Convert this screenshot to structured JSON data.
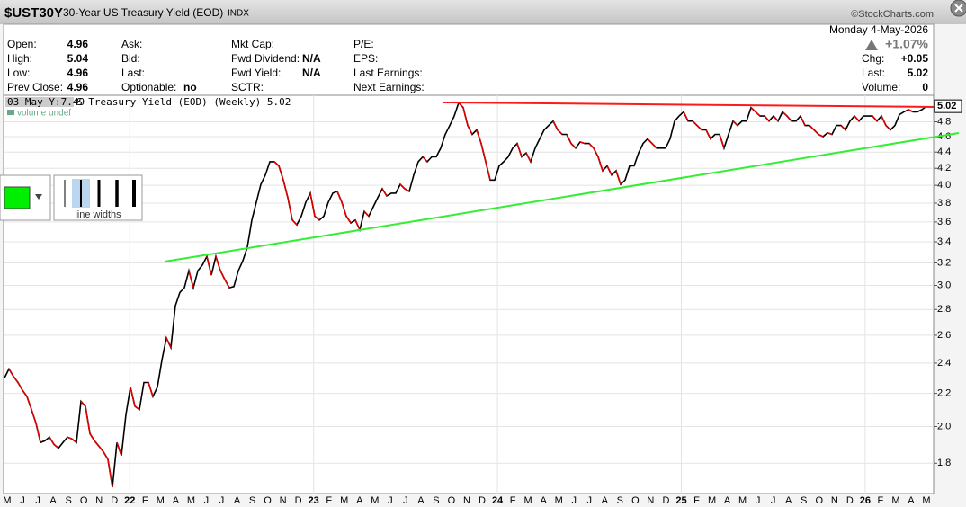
{
  "header": {
    "symbol": "$UST30Y",
    "name": "30-Year US Treasury Yield (EOD)",
    "exchange": "INDX",
    "brand": "©StockCharts.com"
  },
  "quote": {
    "date": "Monday  4-May-2026",
    "change_pct": "+1.07%",
    "columns": [
      [
        {
          "label": "Open:",
          "value": "4.96"
        },
        {
          "label": "High:",
          "value": "5.04"
        },
        {
          "label": "Low:",
          "value": "4.96"
        },
        {
          "label": "Prev Close:",
          "value": "4.96"
        }
      ],
      [
        {
          "label": "Ask:"
        },
        {
          "label": "Bid:"
        },
        {
          "label": "Last:"
        },
        {
          "label": "Optionable:",
          "value": "no"
        }
      ],
      [
        {
          "label": "Mkt Cap:"
        },
        {
          "label": "Fwd Dividend:",
          "value": "N/A"
        },
        {
          "label": "Fwd Yield:",
          "value": "N/A"
        },
        {
          "label": "SCTR:"
        }
      ],
      [
        {
          "label": "P/E:"
        },
        {
          "label": "EPS:"
        },
        {
          "label": "Last Earnings:"
        },
        {
          "label": "Next Earnings:"
        }
      ]
    ],
    "right": [
      {
        "label": "Chg:",
        "value": "+0.05"
      },
      {
        "label": "Last:",
        "value": "5.02"
      },
      {
        "label": "Volume:",
        "value": "0"
      }
    ]
  },
  "toolbox": {
    "caption": "line widths"
  },
  "chart_data": {
    "type": "line",
    "legend": "S Treasury Yield (EOD) (Weekly) 5.02",
    "crosshair": "03 May Y:7.49",
    "volume_note": "volume undef",
    "last_value_label": "5.02",
    "log_scale": true,
    "grid": true,
    "colors": {
      "up": "#000000",
      "down": "#e00000"
    },
    "ylim": [
      1.65,
      5.18
    ],
    "yticks": [
      1.8,
      {
        "value": 2,
        "label": "2.0"
      },
      2.2,
      2.4,
      2.6,
      2.8,
      {
        "value": 3,
        "label": "3.0"
      },
      3.2,
      3.4,
      3.6,
      3.8,
      {
        "value": 4,
        "label": "4.0"
      },
      4.2,
      4.4,
      4.6,
      4.8
    ],
    "xtick_labels": [
      "M",
      "J",
      "J",
      "A",
      "S",
      "O",
      "N",
      "D",
      "22",
      "F",
      "M",
      "A",
      "M",
      "J",
      "J",
      "A",
      "S",
      "O",
      "N",
      "D",
      "23",
      "F",
      "M",
      "A",
      "M",
      "J",
      "J",
      "A",
      "S",
      "O",
      "N",
      "D",
      "24",
      "F",
      "M",
      "A",
      "M",
      "J",
      "J",
      "A",
      "S",
      "O",
      "N",
      "D",
      "25",
      "F",
      "M",
      "A",
      "M",
      "J",
      "J",
      "A",
      "S",
      "O",
      "N",
      "D",
      "26",
      "F",
      "M",
      "A",
      "M"
    ],
    "values": [
      2.3,
      2.36,
      2.31,
      2.27,
      2.22,
      2.18,
      2.1,
      2.02,
      1.91,
      1.92,
      1.94,
      1.9,
      1.88,
      1.91,
      1.94,
      1.93,
      1.91,
      2.15,
      2.12,
      1.96,
      1.92,
      1.89,
      1.86,
      1.82,
      1.68,
      1.91,
      1.84,
      2.07,
      2.24,
      2.12,
      2.1,
      2.27,
      2.27,
      2.18,
      2.24,
      2.42,
      2.58,
      2.51,
      2.83,
      2.94,
      2.98,
      3.13,
      2.98,
      3.13,
      3.18,
      3.26,
      3.09,
      3.26,
      3.13,
      3.05,
      2.98,
      2.99,
      3.13,
      3.22,
      3.35,
      3.62,
      3.81,
      4.01,
      4.12,
      4.28,
      4.28,
      4.23,
      4.06,
      3.86,
      3.62,
      3.57,
      3.66,
      3.81,
      3.91,
      3.66,
      3.62,
      3.66,
      3.81,
      3.91,
      3.93,
      3.81,
      3.66,
      3.59,
      3.62,
      3.52,
      3.71,
      3.66,
      3.76,
      3.86,
      3.96,
      3.88,
      3.91,
      3.91,
      4.01,
      3.96,
      3.93,
      4.12,
      4.28,
      4.34,
      4.28,
      4.34,
      4.34,
      4.45,
      4.63,
      4.75,
      4.88,
      5.07,
      5.0,
      4.75,
      4.63,
      4.69,
      4.51,
      4.28,
      4.06,
      4.06,
      4.23,
      4.28,
      4.34,
      4.45,
      4.51,
      4.34,
      4.39,
      4.28,
      4.45,
      4.57,
      4.69,
      4.75,
      4.81,
      4.69,
      4.63,
      4.63,
      4.51,
      4.45,
      4.53,
      4.51,
      4.51,
      4.45,
      4.34,
      4.17,
      4.23,
      4.12,
      4.17,
      4.01,
      4.06,
      4.23,
      4.23,
      4.39,
      4.51,
      4.57,
      4.51,
      4.45,
      4.45,
      4.45,
      4.57,
      4.81,
      4.88,
      4.94,
      4.81,
      4.81,
      4.75,
      4.69,
      4.69,
      4.57,
      4.63,
      4.63,
      4.45,
      4.63,
      4.81,
      4.75,
      4.81,
      4.81,
      5.0,
      4.94,
      4.88,
      4.88,
      4.81,
      4.88,
      4.81,
      4.94,
      4.88,
      4.81,
      4.81,
      4.88,
      4.75,
      4.75,
      4.69,
      4.63,
      4.6,
      4.65,
      4.63,
      4.75,
      4.75,
      4.69,
      4.81,
      4.88,
      4.81,
      4.88,
      4.88,
      4.88,
      4.81,
      4.88,
      4.75,
      4.69,
      4.75,
      4.9,
      4.94,
      4.97,
      4.94,
      4.94,
      4.97,
      5.02
    ]
  }
}
